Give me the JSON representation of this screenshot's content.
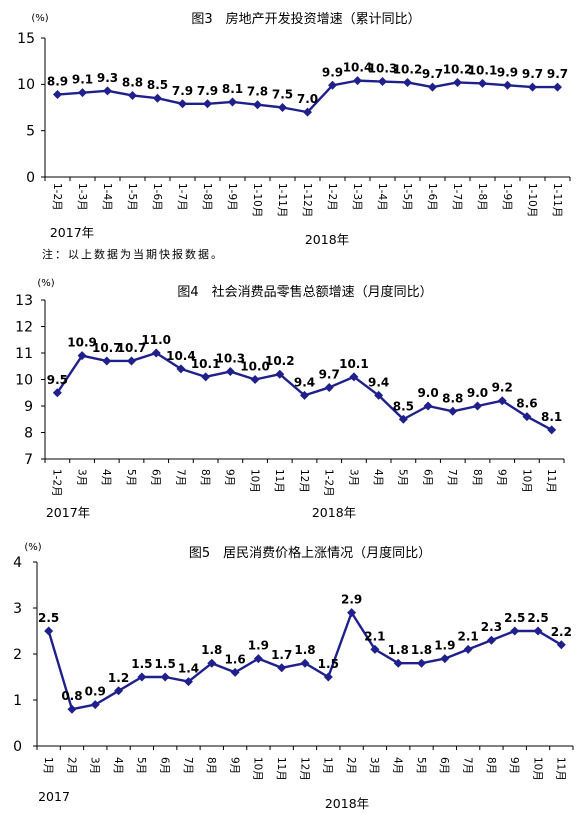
{
  "colors": {
    "line": "#20208c",
    "marker": "#20208c",
    "axis": "#000000",
    "text": "#000000",
    "background": "#ffffff"
  },
  "chart_data": [
    {
      "type": "line",
      "title": "图3　房地产开发投资增速（累计同比）",
      "ylabel": "(%)",
      "ylim": [
        0,
        15
      ],
      "yticks": [
        0,
        5,
        10,
        15
      ],
      "categories": [
        "1-2月",
        "1-3月",
        "1-4月",
        "1-5月",
        "1-6月",
        "1-7月",
        "1-8月",
        "1-9月",
        "1-10月",
        "1-11月",
        "1-12月",
        "1-2月",
        "1-3月",
        "1-4月",
        "1-5月",
        "1-6月",
        "1-7月",
        "1-8月",
        "1-9月",
        "1-10月",
        "1-11月"
      ],
      "values": [
        8.9,
        9.1,
        9.3,
        8.8,
        8.5,
        7.9,
        7.9,
        8.1,
        7.8,
        7.5,
        7.0,
        9.9,
        10.4,
        10.3,
        10.2,
        9.7,
        10.2,
        10.1,
        9.9,
        9.7,
        9.7
      ],
      "period_labels": [
        "2017年",
        "2018年"
      ],
      "note": "注：以上数据为当期快报数据。",
      "marker": "diamond",
      "grid": false,
      "legend": "none"
    },
    {
      "type": "line",
      "title": "图4　社会消费品零售总额增速（月度同比）",
      "ylabel": "(%)",
      "ylim": [
        7,
        13
      ],
      "yticks": [
        7,
        8,
        9,
        10,
        11,
        12,
        13
      ],
      "categories": [
        "1-2月",
        "3月",
        "4月",
        "5月",
        "6月",
        "7月",
        "8月",
        "9月",
        "10月",
        "11月",
        "12月",
        "1-2月",
        "3月",
        "4月",
        "5月",
        "6月",
        "7月",
        "8月",
        "9月",
        "10月",
        "11月"
      ],
      "values": [
        9.5,
        10.9,
        10.7,
        10.7,
        11.0,
        10.4,
        10.1,
        10.3,
        10.0,
        10.2,
        9.4,
        9.7,
        10.1,
        9.4,
        8.5,
        9.0,
        8.8,
        9.0,
        9.2,
        8.6,
        8.1
      ],
      "period_labels": [
        "2017年",
        "2018年"
      ],
      "marker": "diamond",
      "grid": false,
      "legend": "none"
    },
    {
      "type": "line",
      "title": "图5　居民消费价格上涨情况（月度同比）",
      "ylabel": "(%)",
      "ylim": [
        0,
        4
      ],
      "yticks": [
        0,
        1,
        2,
        3,
        4
      ],
      "categories": [
        "1月",
        "2月",
        "3月",
        "4月",
        "5月",
        "6月",
        "7月",
        "8月",
        "9月",
        "10月",
        "11月",
        "12月",
        "1月",
        "2月",
        "3月",
        "4月",
        "5月",
        "6月",
        "7月",
        "8月",
        "9月",
        "10月",
        "11月"
      ],
      "values": [
        2.5,
        0.8,
        0.9,
        1.2,
        1.5,
        1.5,
        1.4,
        1.8,
        1.6,
        1.9,
        1.7,
        1.8,
        1.5,
        2.9,
        2.1,
        1.8,
        1.8,
        1.9,
        2.1,
        2.3,
        2.5,
        2.5,
        2.2
      ],
      "period_labels": [
        "2017",
        "2018年"
      ],
      "marker": "diamond",
      "grid": false,
      "legend": "none"
    }
  ]
}
